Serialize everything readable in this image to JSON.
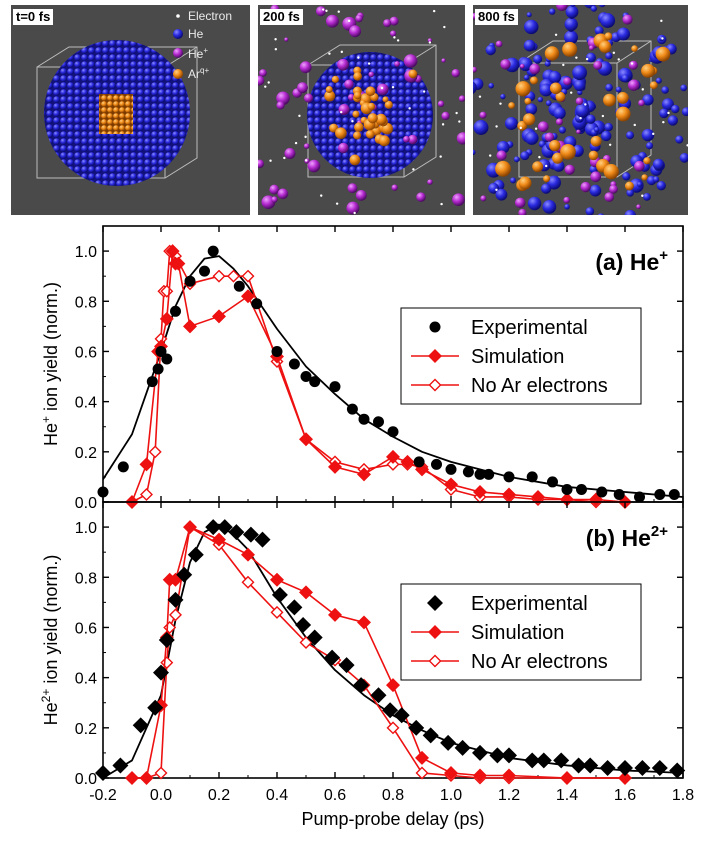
{
  "snapshots": [
    {
      "label": "t=0 fs"
    },
    {
      "label": "200 fs"
    },
    {
      "label": "800 fs"
    }
  ],
  "snapshot_legend": [
    {
      "label": "Electron",
      "color": "#ffffff"
    },
    {
      "label": "He",
      "color": "#2323d6"
    },
    {
      "label": "He",
      "sup": "+",
      "color": "#b52bd0"
    },
    {
      "label": "Ar",
      "sup": "q+",
      "color": "#f08a18"
    }
  ],
  "chart_data": [
    {
      "type": "scatter",
      "panel": "(a) He",
      "panel_sup": "+",
      "ylabel_pre": "He",
      "ylabel_sup": "+",
      "ylabel_post": " ion yield (norm.)",
      "xlim": [
        -0.2,
        1.8
      ],
      "ylim": [
        0,
        1.1
      ],
      "yticks": [
        0.0,
        0.2,
        0.4,
        0.6,
        0.8,
        1.0
      ],
      "yticklabels": [
        "0.0",
        "0.2",
        "0.4",
        "0.6",
        "0.8",
        "1.0"
      ],
      "legend": [
        "Experimental",
        "Simulation",
        "No Ar electrons"
      ],
      "experimental": {
        "marker": "circle",
        "x": [
          -0.2,
          -0.13,
          -0.03,
          -0.01,
          0.0,
          0.02,
          0.05,
          0.1,
          0.15,
          0.18,
          0.27,
          0.33,
          0.4,
          0.46,
          0.5,
          0.53,
          0.6,
          0.66,
          0.7,
          0.75,
          0.8,
          0.89,
          0.95,
          1.0,
          1.06,
          1.1,
          1.13,
          1.2,
          1.28,
          1.35,
          1.4,
          1.45,
          1.52,
          1.58,
          1.65,
          1.72,
          1.77
        ],
        "y": [
          0.04,
          0.14,
          0.48,
          0.53,
          0.6,
          0.57,
          0.76,
          0.88,
          0.92,
          1.0,
          0.86,
          0.79,
          0.6,
          0.55,
          0.5,
          0.48,
          0.46,
          0.37,
          0.33,
          0.32,
          0.28,
          0.16,
          0.15,
          0.13,
          0.12,
          0.11,
          0.11,
          0.1,
          0.1,
          0.08,
          0.05,
          0.05,
          0.04,
          0.03,
          0.02,
          0.03,
          0.03
        ]
      },
      "simulation": {
        "marker": "filled-diamond",
        "x": [
          -0.1,
          -0.05,
          -0.01,
          0.0,
          0.02,
          0.04,
          0.05,
          0.06,
          0.1,
          0.2,
          0.3,
          0.4,
          0.5,
          0.6,
          0.7,
          0.8,
          0.85,
          0.9,
          1.0,
          1.1,
          1.2,
          1.3,
          1.4,
          1.5,
          1.6
        ],
        "y": [
          0.0,
          0.15,
          0.6,
          0.62,
          0.73,
          1.0,
          0.95,
          0.95,
          0.7,
          0.74,
          0.82,
          0.58,
          0.25,
          0.14,
          0.11,
          0.18,
          0.16,
          0.13,
          0.07,
          0.04,
          0.03,
          0.02,
          0.01,
          0.01,
          0.0
        ]
      },
      "no_ar_electrons": {
        "marker": "open-diamond",
        "x": [
          -0.1,
          -0.05,
          -0.02,
          0.0,
          0.01,
          0.02,
          0.03,
          0.05,
          0.1,
          0.2,
          0.25,
          0.3,
          0.4,
          0.5,
          0.6,
          0.7,
          0.8,
          0.85,
          0.9,
          1.0,
          1.1,
          1.2,
          1.3,
          1.4,
          1.5,
          1.6
        ],
        "y": [
          0.0,
          0.03,
          0.2,
          0.65,
          0.84,
          0.84,
          1.0,
          0.98,
          0.87,
          0.9,
          0.9,
          0.9,
          0.56,
          0.25,
          0.16,
          0.13,
          0.15,
          0.15,
          0.14,
          0.05,
          0.02,
          0.02,
          0.01,
          0.01,
          0.0,
          0.0
        ]
      },
      "fit": {
        "x": [
          -0.2,
          -0.1,
          0.0,
          0.05,
          0.1,
          0.15,
          0.2,
          0.25,
          0.3,
          0.4,
          0.5,
          0.6,
          0.7,
          0.8,
          0.9,
          1.0,
          1.2,
          1.4,
          1.6,
          1.8
        ],
        "y": [
          0.09,
          0.27,
          0.6,
          0.78,
          0.9,
          0.97,
          0.98,
          0.93,
          0.86,
          0.69,
          0.54,
          0.43,
          0.33,
          0.26,
          0.2,
          0.16,
          0.1,
          0.06,
          0.04,
          0.02
        ]
      }
    },
    {
      "type": "scatter",
      "panel": "(b) He",
      "panel_sup": "2+",
      "ylabel_pre": "He",
      "ylabel_sup": "2+",
      "ylabel_post": " ion yield (norm.)",
      "xlabel": "Pump-probe delay (ps)",
      "xlim": [
        -0.2,
        1.8
      ],
      "ylim": [
        0,
        1.1
      ],
      "xticks": [
        -0.2,
        0.0,
        0.2,
        0.4,
        0.6,
        0.8,
        1.0,
        1.2,
        1.4,
        1.6,
        1.8
      ],
      "xticklabels": [
        "-0.2",
        "0.0",
        "0.2",
        "0.4",
        "0.6",
        "0.8",
        "1.0",
        "1.2",
        "1.4",
        "1.6",
        "1.8"
      ],
      "yticks": [
        0.0,
        0.2,
        0.4,
        0.6,
        0.8,
        1.0
      ],
      "yticklabels": [
        "0.0",
        "0.2",
        "0.4",
        "0.6",
        "0.8",
        "1.0"
      ],
      "legend": [
        "Experimental",
        "Simulation",
        "No Ar electrons"
      ],
      "experimental": {
        "marker": "filled-diamond",
        "x": [
          -0.2,
          -0.14,
          -0.07,
          -0.02,
          0.0,
          0.02,
          0.05,
          0.08,
          0.12,
          0.18,
          0.22,
          0.26,
          0.31,
          0.35,
          0.41,
          0.46,
          0.49,
          0.53,
          0.59,
          0.64,
          0.69,
          0.75,
          0.79,
          0.83,
          0.88,
          0.93,
          0.99,
          1.04,
          1.1,
          1.16,
          1.2,
          1.28,
          1.32,
          1.38,
          1.44,
          1.48,
          1.54,
          1.6,
          1.66,
          1.72,
          1.78
        ],
        "y": [
          0.02,
          0.05,
          0.21,
          0.28,
          0.42,
          0.55,
          0.71,
          0.81,
          0.89,
          1.0,
          1.0,
          0.98,
          0.97,
          0.95,
          0.73,
          0.68,
          0.61,
          0.56,
          0.48,
          0.45,
          0.37,
          0.33,
          0.27,
          0.25,
          0.2,
          0.17,
          0.14,
          0.12,
          0.1,
          0.09,
          0.09,
          0.07,
          0.07,
          0.07,
          0.05,
          0.05,
          0.04,
          0.04,
          0.04,
          0.04,
          0.03
        ]
      },
      "simulation": {
        "marker": "filled-diamond",
        "x": [
          -0.1,
          -0.05,
          0.0,
          0.02,
          0.03,
          0.05,
          0.1,
          0.2,
          0.3,
          0.4,
          0.5,
          0.6,
          0.7,
          0.8,
          0.9,
          1.0,
          1.1,
          1.2,
          1.4,
          1.6
        ],
        "y": [
          0.0,
          0.0,
          0.29,
          0.56,
          0.79,
          0.79,
          1.0,
          0.95,
          0.89,
          0.79,
          0.74,
          0.65,
          0.62,
          0.37,
          0.08,
          0.02,
          0.01,
          0.01,
          0.0,
          0.0
        ]
      },
      "no_ar_electrons": {
        "marker": "open-diamond",
        "x": [
          -0.1,
          -0.05,
          0.0,
          0.02,
          0.03,
          0.05,
          0.1,
          0.2,
          0.3,
          0.4,
          0.5,
          0.6,
          0.7,
          0.8,
          0.9,
          1.0,
          1.1,
          1.2,
          1.4,
          1.6
        ],
        "y": [
          0.0,
          0.0,
          0.02,
          0.46,
          0.6,
          0.65,
          1.0,
          0.93,
          0.78,
          0.66,
          0.54,
          0.47,
          0.37,
          0.2,
          0.02,
          0.01,
          0.0,
          0.0,
          0.0,
          0.0
        ]
      },
      "fit": {
        "x": [
          -0.2,
          -0.1,
          0.0,
          0.05,
          0.1,
          0.15,
          0.2,
          0.25,
          0.3,
          0.4,
          0.5,
          0.6,
          0.7,
          0.8,
          0.9,
          1.0,
          1.2,
          1.4,
          1.6,
          1.8
        ],
        "y": [
          0.0,
          0.07,
          0.33,
          0.63,
          0.86,
          0.98,
          1.01,
          0.97,
          0.91,
          0.72,
          0.56,
          0.43,
          0.33,
          0.25,
          0.19,
          0.14,
          0.08,
          0.05,
          0.03,
          0.02
        ]
      }
    }
  ]
}
